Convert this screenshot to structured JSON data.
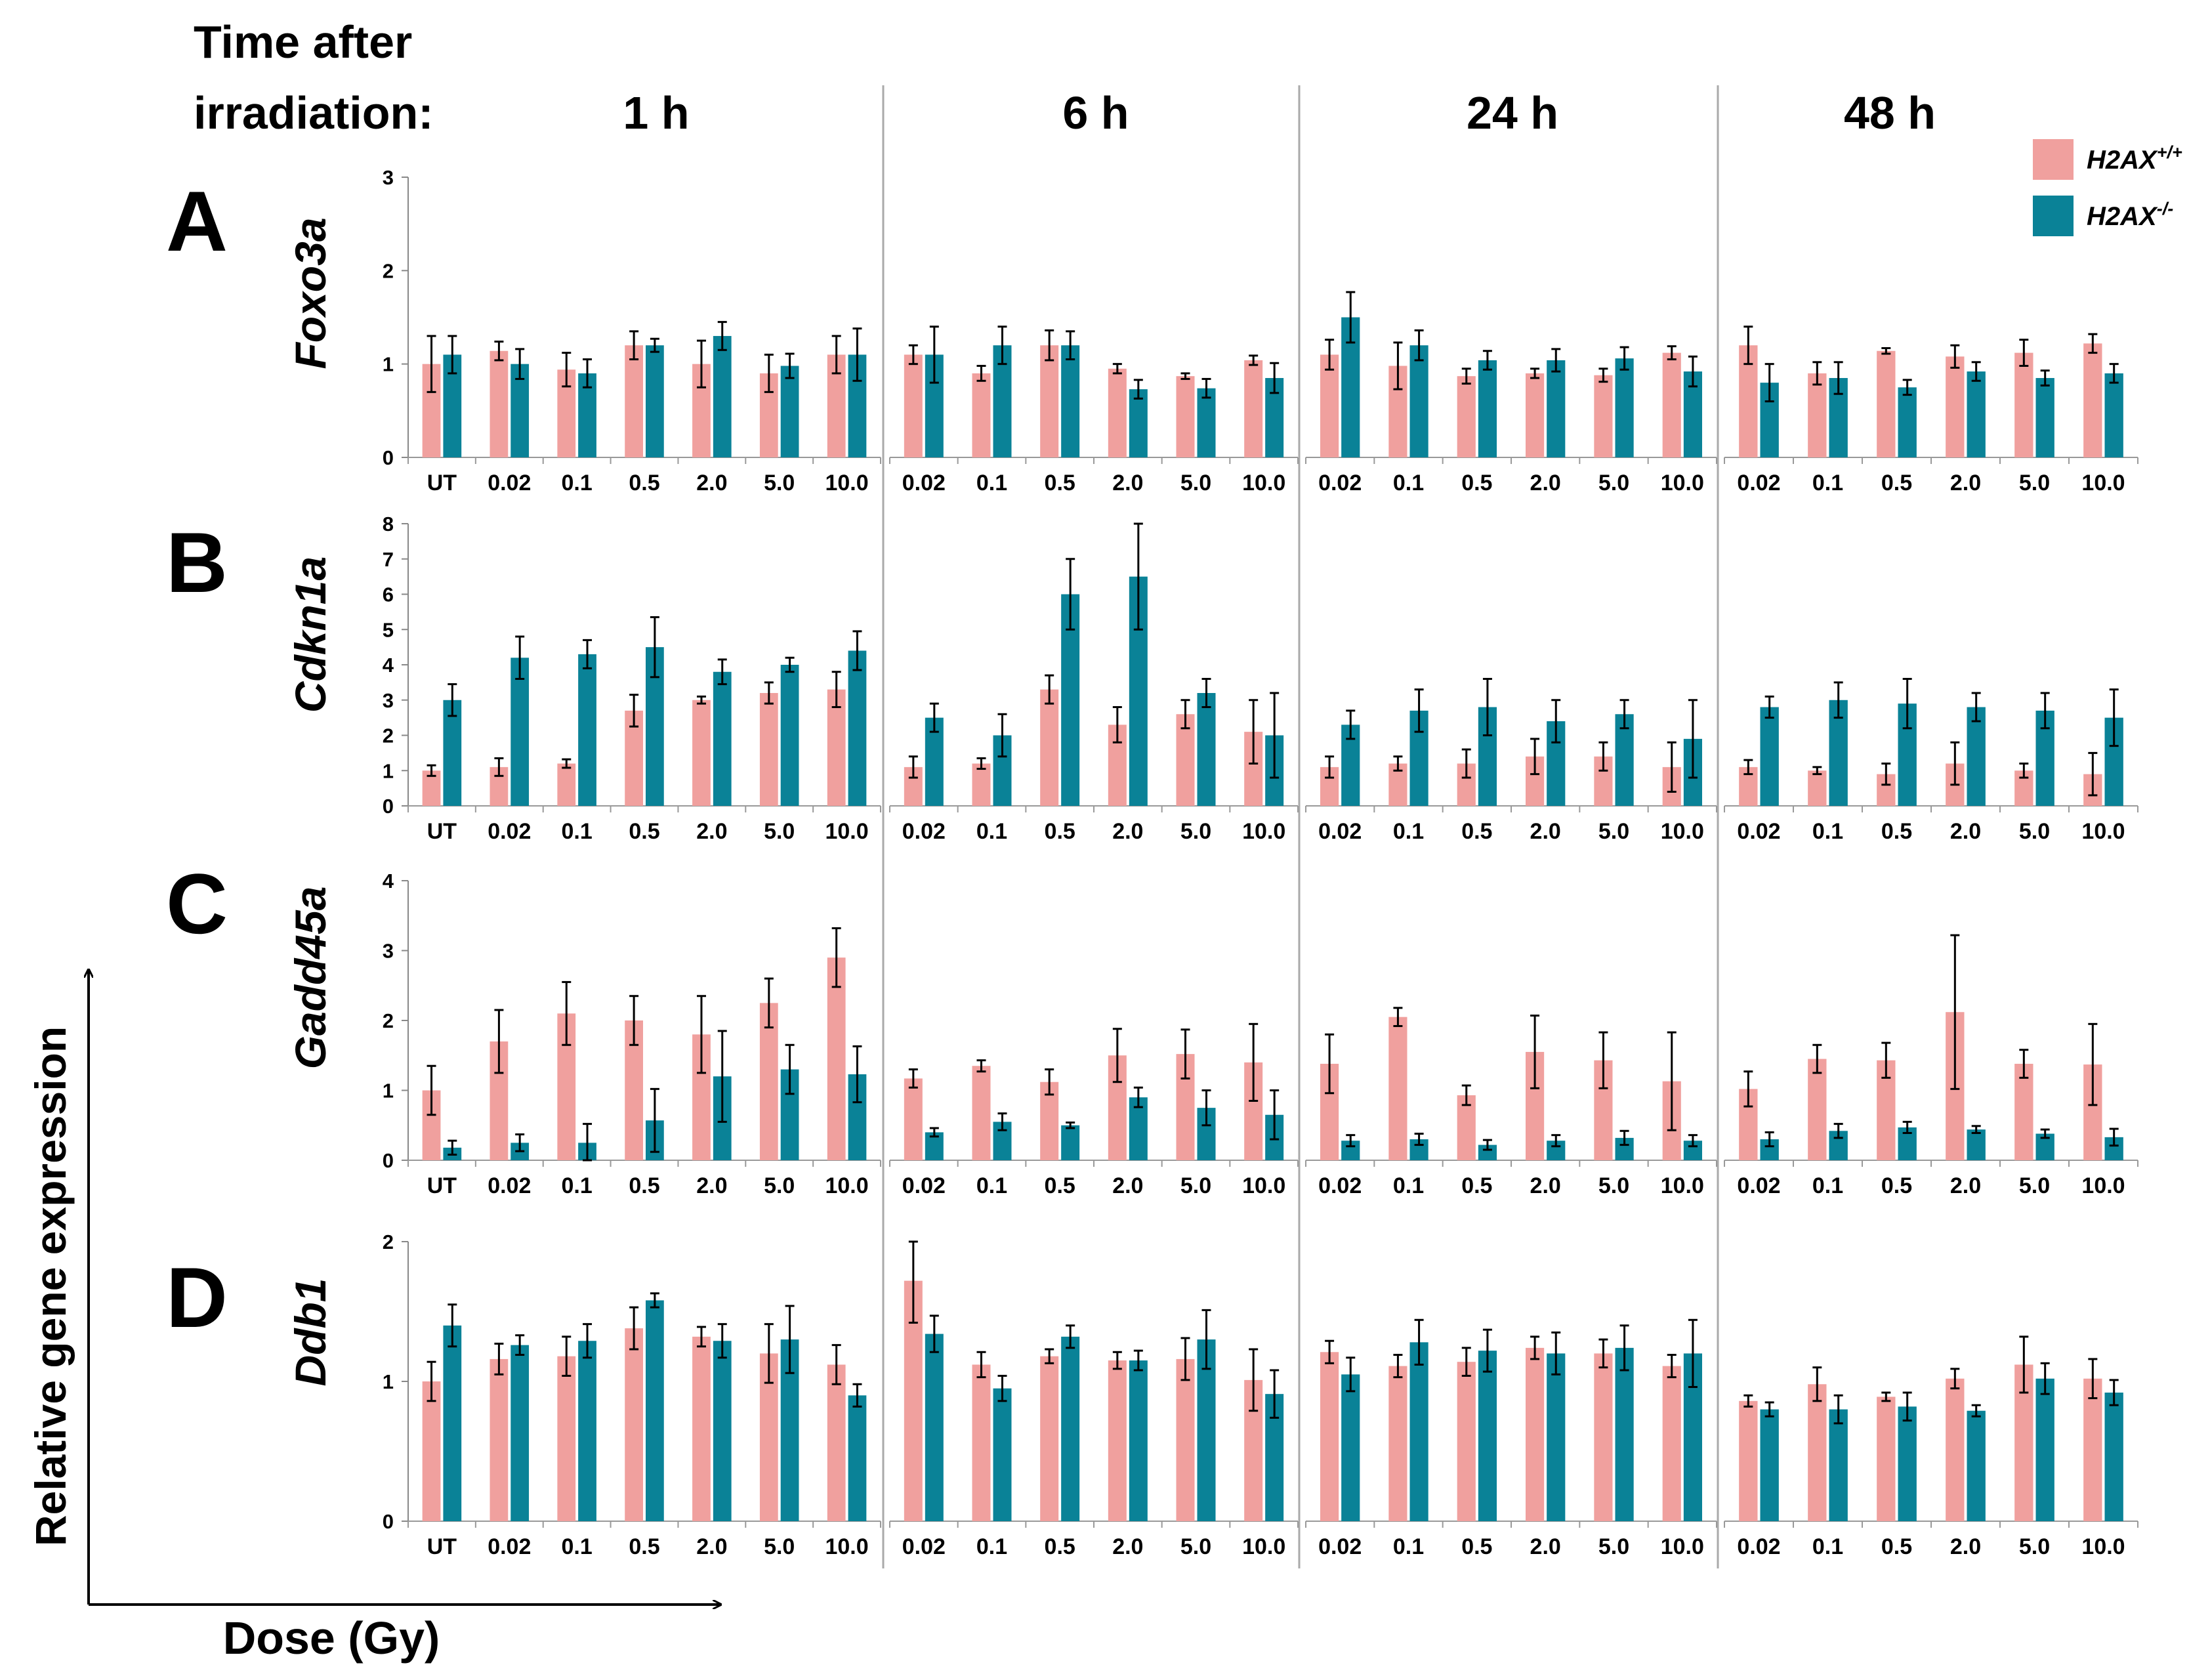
{
  "header": {
    "time_line1": "Time after",
    "time_line2": "irradiation:",
    "time_labels": [
      "1 h",
      "6 h",
      "24 h",
      "48 h"
    ]
  },
  "legend": {
    "items": [
      {
        "label": "H2AX",
        "sup": "+/+",
        "color": "#F0A09E"
      },
      {
        "label": "H2AX",
        "sup": "-/-",
        "color": "#0A8297"
      }
    ]
  },
  "axes": {
    "y_title": "Relative gene expression",
    "x_title": "Dose (Gy)"
  },
  "chart_data": {
    "type": "bar",
    "series_names": [
      "H2AX+/+",
      "H2AX-/-"
    ],
    "colors": [
      "#F0A09E",
      "#0A8297"
    ],
    "time_points": [
      "1 h",
      "6 h",
      "24 h",
      "48 h"
    ],
    "categories_1h": [
      "UT",
      "0.02",
      "0.1",
      "0.5",
      "2.0",
      "5.0",
      "10.0"
    ],
    "categories_other": [
      "0.02",
      "0.1",
      "0.5",
      "2.0",
      "5.0",
      "10.0"
    ],
    "rows": [
      {
        "letter": "A",
        "gene": "Foxo3a",
        "ylim": [
          0,
          3
        ],
        "yticks": [
          "0",
          "1",
          "2",
          "3"
        ],
        "panels": [
          {
            "wt": [
              1.0,
              1.14,
              0.94,
              1.2,
              1.0,
              0.9,
              1.1
            ],
            "wt_err": [
              0.3,
              0.1,
              0.18,
              0.15,
              0.25,
              0.2,
              0.2
            ],
            "ko": [
              1.1,
              1.0,
              0.9,
              1.2,
              1.3,
              0.98,
              1.1
            ],
            "ko_err": [
              0.2,
              0.16,
              0.15,
              0.07,
              0.15,
              0.13,
              0.28
            ]
          },
          {
            "wt": [
              1.1,
              0.9,
              1.2,
              0.95,
              0.87,
              1.04
            ],
            "wt_err": [
              0.1,
              0.08,
              0.16,
              0.05,
              0.03,
              0.05
            ],
            "ko": [
              1.1,
              1.2,
              1.2,
              0.73,
              0.74,
              0.85
            ],
            "ko_err": [
              0.3,
              0.2,
              0.15,
              0.1,
              0.1,
              0.16
            ]
          },
          {
            "wt": [
              1.1,
              0.98,
              0.87,
              0.9,
              0.88,
              1.12
            ],
            "wt_err": [
              0.16,
              0.25,
              0.08,
              0.05,
              0.07,
              0.07
            ],
            "ko": [
              1.5,
              1.2,
              1.04,
              1.04,
              1.06,
              0.92
            ],
            "ko_err": [
              0.27,
              0.16,
              0.1,
              0.12,
              0.12,
              0.16
            ]
          },
          {
            "wt": [
              1.2,
              0.9,
              1.14,
              1.08,
              1.12,
              1.22
            ],
            "wt_err": [
              0.2,
              0.12,
              0.03,
              0.12,
              0.14,
              0.1
            ],
            "ko": [
              0.8,
              0.85,
              0.75,
              0.92,
              0.85,
              0.9
            ],
            "ko_err": [
              0.2,
              0.17,
              0.08,
              0.1,
              0.08,
              0.1
            ]
          }
        ]
      },
      {
        "letter": "B",
        "gene": "Cdkn1a",
        "ylim": [
          0,
          8
        ],
        "yticks": [
          "0",
          "1",
          "2",
          "3",
          "4",
          "5",
          "6",
          "7",
          "8"
        ],
        "panels": [
          {
            "wt": [
              1.0,
              1.1,
              1.2,
              2.7,
              3.0,
              3.2,
              3.3
            ],
            "wt_err": [
              0.15,
              0.25,
              0.12,
              0.45,
              0.1,
              0.3,
              0.5
            ],
            "ko": [
              3.0,
              4.2,
              4.3,
              4.5,
              3.8,
              4.0,
              4.4
            ],
            "ko_err": [
              0.45,
              0.6,
              0.4,
              0.85,
              0.35,
              0.2,
              0.55
            ]
          },
          {
            "wt": [
              1.1,
              1.2,
              3.3,
              2.3,
              2.6,
              2.1
            ],
            "wt_err": [
              0.3,
              0.15,
              0.4,
              0.5,
              0.4,
              0.9
            ],
            "ko": [
              2.5,
              2.0,
              6.0,
              6.5,
              3.2,
              2.0
            ],
            "ko_err": [
              0.4,
              0.6,
              1.0,
              1.5,
              0.4,
              1.2
            ]
          },
          {
            "wt": [
              1.1,
              1.2,
              1.2,
              1.4,
              1.4,
              1.1
            ],
            "wt_err": [
              0.3,
              0.2,
              0.4,
              0.5,
              0.4,
              0.7
            ],
            "ko": [
              2.3,
              2.7,
              2.8,
              2.4,
              2.6,
              1.9
            ],
            "ko_err": [
              0.4,
              0.6,
              0.8,
              0.6,
              0.4,
              1.1
            ]
          },
          {
            "wt": [
              1.1,
              1.0,
              0.9,
              1.2,
              1.0,
              0.9
            ],
            "wt_err": [
              0.2,
              0.1,
              0.3,
              0.6,
              0.2,
              0.6
            ],
            "ko": [
              2.8,
              3.0,
              2.9,
              2.8,
              2.7,
              2.5
            ],
            "ko_err": [
              0.3,
              0.5,
              0.7,
              0.4,
              0.5,
              0.8
            ]
          }
        ]
      },
      {
        "letter": "C",
        "gene": "Gadd45a",
        "ylim": [
          0,
          4
        ],
        "yticks": [
          "0",
          "1",
          "2",
          "3",
          "4"
        ],
        "panels": [
          {
            "wt": [
              1.0,
              1.7,
              2.1,
              2.0,
              1.8,
              2.25,
              2.9
            ],
            "wt_err": [
              0.35,
              0.45,
              0.45,
              0.35,
              0.55,
              0.35,
              0.42
            ],
            "ko": [
              0.18,
              0.25,
              0.25,
              0.57,
              1.2,
              1.3,
              1.23
            ],
            "ko_err": [
              0.1,
              0.12,
              0.27,
              0.45,
              0.65,
              0.35,
              0.4
            ]
          },
          {
            "wt": [
              1.17,
              1.35,
              1.12,
              1.5,
              1.52,
              1.4
            ],
            "wt_err": [
              0.13,
              0.08,
              0.18,
              0.38,
              0.35,
              0.55
            ],
            "ko": [
              0.4,
              0.55,
              0.5,
              0.9,
              0.75,
              0.65
            ],
            "ko_err": [
              0.06,
              0.12,
              0.04,
              0.14,
              0.25,
              0.35
            ]
          },
          {
            "wt": [
              1.38,
              2.05,
              0.93,
              1.55,
              1.43,
              1.13
            ],
            "wt_err": [
              0.42,
              0.13,
              0.14,
              0.52,
              0.4,
              0.7
            ],
            "ko": [
              0.28,
              0.3,
              0.22,
              0.28,
              0.32,
              0.28
            ],
            "ko_err": [
              0.08,
              0.08,
              0.07,
              0.08,
              0.1,
              0.08
            ]
          },
          {
            "wt": [
              1.02,
              1.45,
              1.43,
              2.12,
              1.38,
              1.37
            ],
            "wt_err": [
              0.25,
              0.2,
              0.25,
              1.1,
              0.2,
              0.58
            ],
            "ko": [
              0.3,
              0.42,
              0.47,
              0.44,
              0.38,
              0.33
            ],
            "ko_err": [
              0.1,
              0.1,
              0.08,
              0.05,
              0.06,
              0.12
            ]
          }
        ]
      },
      {
        "letter": "D",
        "gene": "Ddb1",
        "ylim": [
          0,
          2
        ],
        "yticks": [
          "0",
          "1",
          "2"
        ],
        "panels": [
          {
            "wt": [
              1.0,
              1.16,
              1.18,
              1.38,
              1.32,
              1.2,
              1.12
            ],
            "wt_err": [
              0.14,
              0.11,
              0.14,
              0.15,
              0.07,
              0.21,
              0.14
            ],
            "ko": [
              1.4,
              1.26,
              1.29,
              1.58,
              1.29,
              1.3,
              0.9
            ],
            "ko_err": [
              0.15,
              0.07,
              0.12,
              0.05,
              0.12,
              0.24,
              0.08
            ]
          },
          {
            "wt": [
              1.72,
              1.12,
              1.18,
              1.15,
              1.16,
              1.01
            ],
            "wt_err": [
              0.3,
              0.09,
              0.05,
              0.06,
              0.15,
              0.22
            ],
            "ko": [
              1.34,
              0.95,
              1.32,
              1.15,
              1.3,
              0.91
            ],
            "ko_err": [
              0.13,
              0.09,
              0.08,
              0.07,
              0.21,
              0.17
            ]
          },
          {
            "wt": [
              1.21,
              1.11,
              1.14,
              1.24,
              1.2,
              1.11
            ],
            "wt_err": [
              0.08,
              0.08,
              0.1,
              0.08,
              0.1,
              0.08
            ],
            "ko": [
              1.05,
              1.28,
              1.22,
              1.2,
              1.24,
              1.2
            ],
            "ko_err": [
              0.12,
              0.16,
              0.15,
              0.15,
              0.16,
              0.24
            ]
          },
          {
            "wt": [
              0.86,
              0.98,
              0.89,
              1.02,
              1.12,
              1.02
            ],
            "wt_err": [
              0.04,
              0.12,
              0.03,
              0.07,
              0.2,
              0.14
            ],
            "ko": [
              0.8,
              0.8,
              0.82,
              0.79,
              1.02,
              0.92
            ],
            "ko_err": [
              0.05,
              0.1,
              0.1,
              0.04,
              0.11,
              0.09
            ]
          }
        ]
      }
    ]
  }
}
